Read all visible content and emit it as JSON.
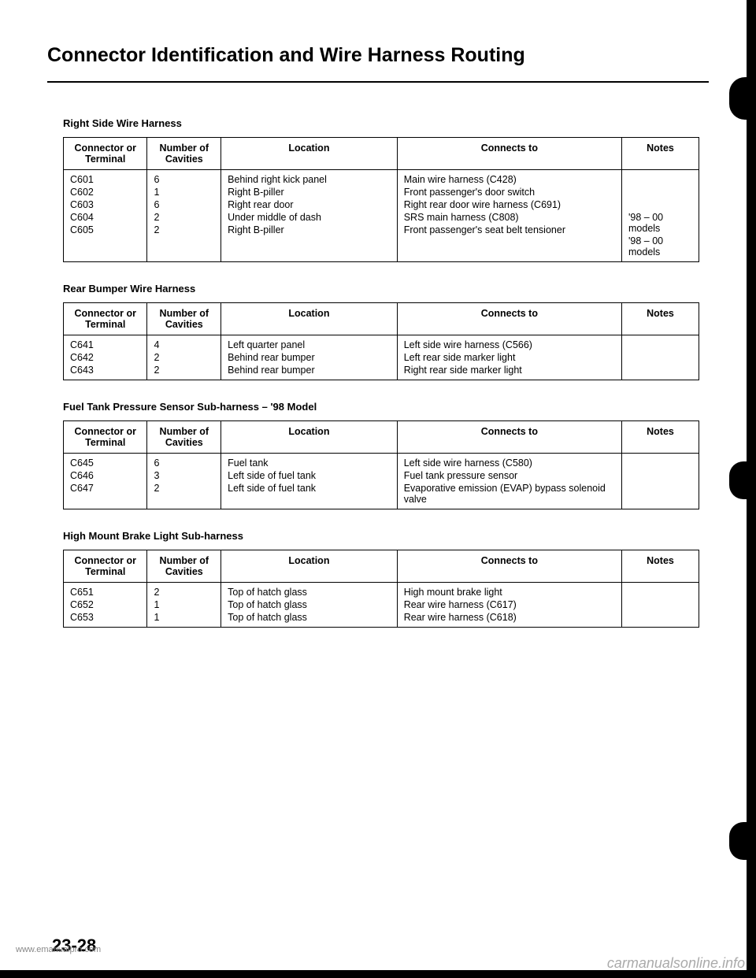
{
  "title": "Connector Identification and Wire Harness Routing",
  "page_number": "23-28",
  "watermark_left": "www.emanualpro.com",
  "watermark_right": "carmanualsonline.info",
  "columns": {
    "connector": "Connector or Terminal",
    "cavities": "Number of Cavities",
    "location": "Location",
    "connects_to": "Connects to",
    "notes": "Notes"
  },
  "sections": [
    {
      "title": "Right Side Wire Harness",
      "rows": [
        {
          "connector": "C601",
          "cavities": "6",
          "location": "Behind right kick panel",
          "connects_to": "Main wire harness (C428)",
          "notes": ""
        },
        {
          "connector": "C602",
          "cavities": "1",
          "location": "Right B-piller",
          "connects_to": "Front passenger's door switch",
          "notes": ""
        },
        {
          "connector": "C603",
          "cavities": "6",
          "location": "Right rear door",
          "connects_to": "Right rear door wire harness (C691)",
          "notes": ""
        },
        {
          "connector": "C604",
          "cavities": "2",
          "location": "Under middle of dash",
          "connects_to": "SRS main harness (C808)",
          "notes": "'98 – 00 models"
        },
        {
          "connector": "C605",
          "cavities": "2",
          "location": "Right B-piller",
          "connects_to": "Front passenger's seat belt tensioner",
          "notes": "'98 – 00 models"
        }
      ]
    },
    {
      "title": "Rear Bumper Wire Harness",
      "rows": [
        {
          "connector": "C641",
          "cavities": "4",
          "location": "Left quarter panel",
          "connects_to": "Left side wire harness (C566)",
          "notes": ""
        },
        {
          "connector": "C642",
          "cavities": "2",
          "location": "Behind rear bumper",
          "connects_to": "Left rear side marker light",
          "notes": ""
        },
        {
          "connector": "C643",
          "cavities": "2",
          "location": "Behind rear bumper",
          "connects_to": "Right rear side marker light",
          "notes": ""
        }
      ]
    },
    {
      "title": "Fuel Tank Pressure Sensor Sub-harness – '98 Model",
      "rows": [
        {
          "connector": "C645",
          "cavities": "6",
          "location": "Fuel tank",
          "connects_to": "Left side wire harness (C580)",
          "notes": ""
        },
        {
          "connector": "C646",
          "cavities": "3",
          "location": "Left side of fuel tank",
          "connects_to": "Fuel tank pressure sensor",
          "notes": ""
        },
        {
          "connector": "C647",
          "cavities": "2",
          "location": "Left side of fuel tank",
          "connects_to": "Evaporative emission (EVAP) bypass solenoid valve",
          "notes": ""
        }
      ]
    },
    {
      "title": "High Mount Brake Light Sub-harness",
      "rows": [
        {
          "connector": "C651",
          "cavities": "2",
          "location": "Top of hatch glass",
          "connects_to": "High mount brake light",
          "notes": ""
        },
        {
          "connector": "C652",
          "cavities": "1",
          "location": "Top of hatch glass",
          "connects_to": "Rear wire harness (C617)",
          "notes": ""
        },
        {
          "connector": "C653",
          "cavities": "1",
          "location": "Top of hatch glass",
          "connects_to": "Rear wire harness (C618)",
          "notes": ""
        }
      ]
    }
  ]
}
